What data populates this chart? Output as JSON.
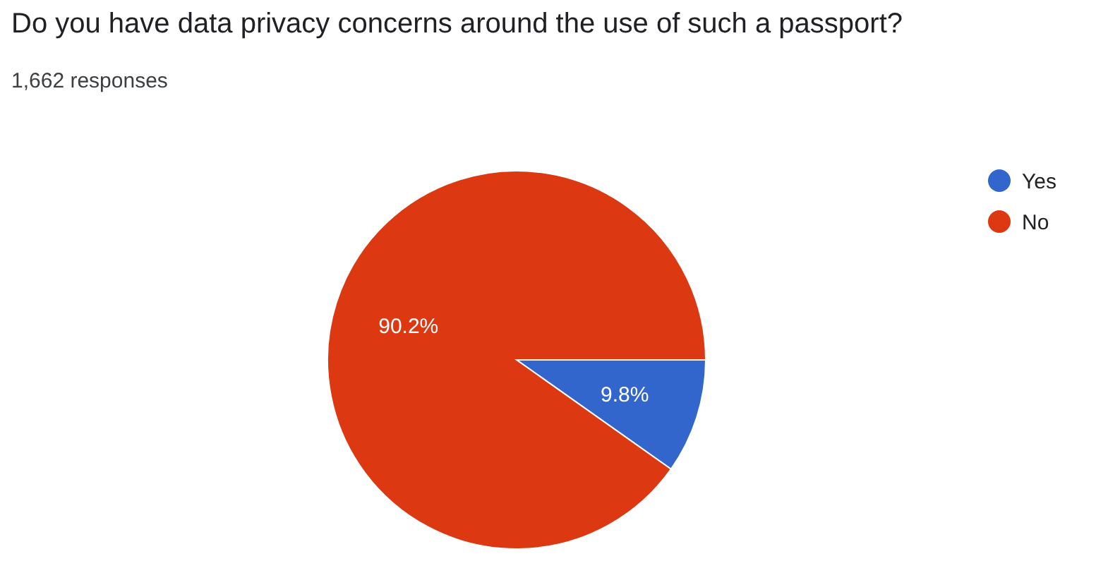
{
  "chart_data": {
    "type": "pie",
    "title": "Do you have data privacy concerns around the use of such a passport?",
    "subtitle": "1,662 responses",
    "categories": [
      "Yes",
      "No"
    ],
    "values": [
      9.8,
      90.2
    ],
    "colors": [
      "#3366cc",
      "#dc3912"
    ],
    "value_labels": [
      "9.8%",
      "90.2%"
    ],
    "legend": "top right"
  }
}
